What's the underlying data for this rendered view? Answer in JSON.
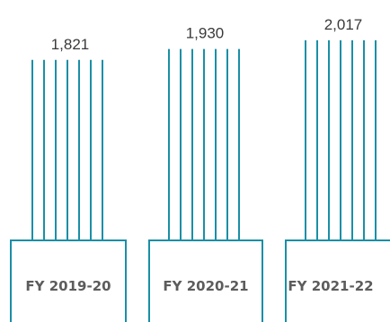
{
  "chart_data": {
    "type": "bar",
    "categories": [
      "FY 2019-20",
      "FY 2020-21",
      "FY 2021-22"
    ],
    "values": [
      1821,
      1930,
      2017
    ],
    "value_labels": [
      "1,821",
      "1,930",
      "2,017"
    ],
    "title": "",
    "xlabel": "",
    "ylabel": "",
    "ylim": [
      0,
      2200
    ],
    "grid": false,
    "legend": "none",
    "style": "cables",
    "colors": {
      "line": "#1a8fa6",
      "label": "#3a3a3a",
      "category": "#5c5c5c"
    }
  }
}
